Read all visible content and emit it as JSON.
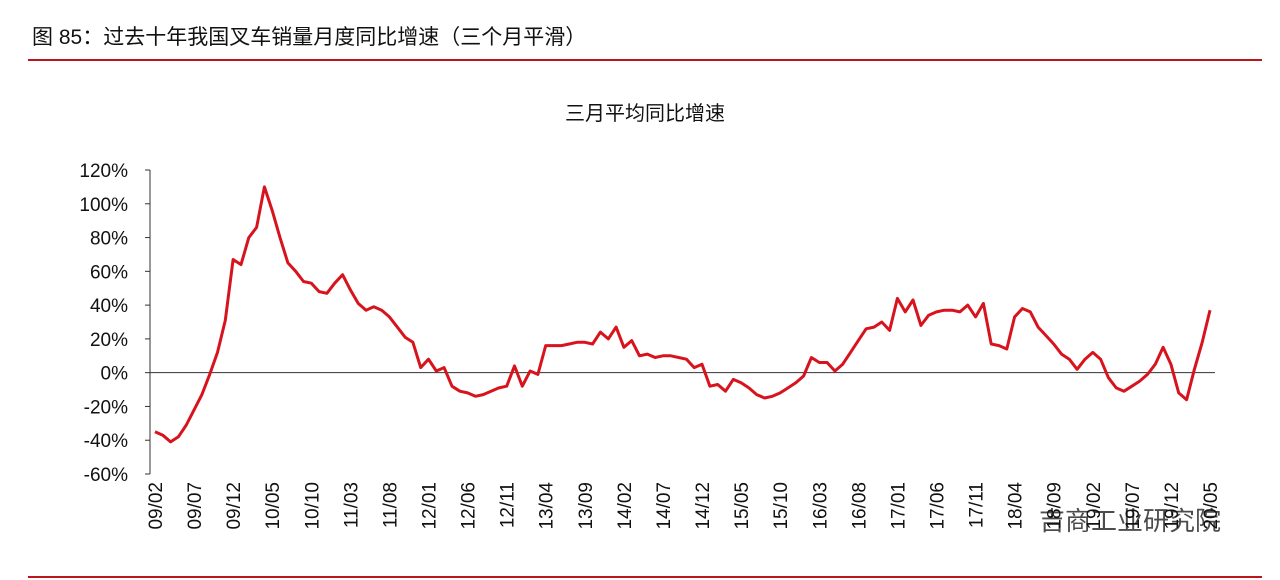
{
  "header": {
    "title": "图 85：过去十年我国叉车销量月度同比增速（三个月平滑）"
  },
  "watermark": "吉商工业研究院",
  "chart_data": {
    "type": "line",
    "title": "三月平均同比增速",
    "categories": [
      "09/02",
      null,
      null,
      null,
      null,
      "09/07",
      null,
      null,
      null,
      null,
      "09/12",
      null,
      null,
      null,
      null,
      "10/05",
      null,
      null,
      null,
      null,
      "10/10",
      null,
      null,
      null,
      null,
      "11/03",
      null,
      null,
      null,
      null,
      "11/08",
      null,
      null,
      null,
      null,
      "12/01",
      null,
      null,
      null,
      null,
      "12/06",
      null,
      null,
      null,
      null,
      "12/11",
      null,
      null,
      null,
      null,
      "13/04",
      null,
      null,
      null,
      null,
      "13/09",
      null,
      null,
      null,
      null,
      "14/02",
      null,
      null,
      null,
      null,
      "14/07",
      null,
      null,
      null,
      null,
      "14/12",
      null,
      null,
      null,
      null,
      "15/05",
      null,
      null,
      null,
      null,
      "15/10",
      null,
      null,
      null,
      null,
      "16/03",
      null,
      null,
      null,
      null,
      "16/08",
      null,
      null,
      null,
      null,
      "17/01",
      null,
      null,
      null,
      null,
      "17/06",
      null,
      null,
      null,
      null,
      "17/11",
      null,
      null,
      null,
      null,
      "18/04",
      null,
      null,
      null,
      null,
      "18/09",
      null,
      null,
      null,
      null,
      "19/02",
      null,
      null,
      null,
      null,
      "19/07",
      null,
      null,
      null,
      null,
      "19/12",
      null,
      null,
      null,
      null,
      "20/05"
    ],
    "series": [
      {
        "name": "三月平均同比增速",
        "color": "#d7141d",
        "values": [
          -35,
          -37,
          -41,
          -38,
          -31,
          -22,
          -13,
          -1,
          12,
          31,
          67,
          64,
          80,
          86,
          110,
          96,
          80,
          65,
          60,
          54,
          53,
          48,
          47,
          53,
          58,
          49,
          41,
          37,
          39,
          37,
          33,
          27,
          21,
          18,
          3,
          8,
          1,
          3,
          -8,
          -11,
          -12,
          -14,
          -13,
          -11,
          -9,
          -8,
          4,
          -8,
          1,
          -1,
          16,
          16,
          16,
          17,
          18,
          18,
          17,
          24,
          20,
          27,
          15,
          19,
          10,
          11,
          9,
          10,
          10,
          9,
          8,
          3,
          5,
          -8,
          -7,
          -11,
          -4,
          -6,
          -9,
          -13,
          -15,
          -14,
          -12,
          -9,
          -6,
          -2,
          9,
          6,
          6,
          1,
          5,
          12,
          19,
          26,
          27,
          30,
          25,
          44,
          36,
          43,
          28,
          34,
          36,
          37,
          37,
          36,
          40,
          33,
          41,
          17,
          16,
          14,
          33,
          38,
          36,
          27,
          22,
          17,
          11,
          8,
          2,
          8,
          12,
          8,
          -3,
          -9,
          -11,
          -8,
          -5,
          -1,
          5,
          15,
          5,
          -12,
          -16,
          2,
          18,
          37
        ]
      }
    ],
    "ylim": [
      -60,
      120
    ],
    "yticks": [
      {
        "value": -60,
        "label": "-60%"
      },
      {
        "value": -40,
        "label": "-40%"
      },
      {
        "value": -20,
        "label": "-20%"
      },
      {
        "value": 0,
        "label": "0%"
      },
      {
        "value": 20,
        "label": "20%"
      },
      {
        "value": 40,
        "label": "40%"
      },
      {
        "value": 60,
        "label": "60%"
      },
      {
        "value": 80,
        "label": "80%"
      },
      {
        "value": 100,
        "label": "100%"
      },
      {
        "value": 120,
        "label": "120%"
      }
    ]
  }
}
